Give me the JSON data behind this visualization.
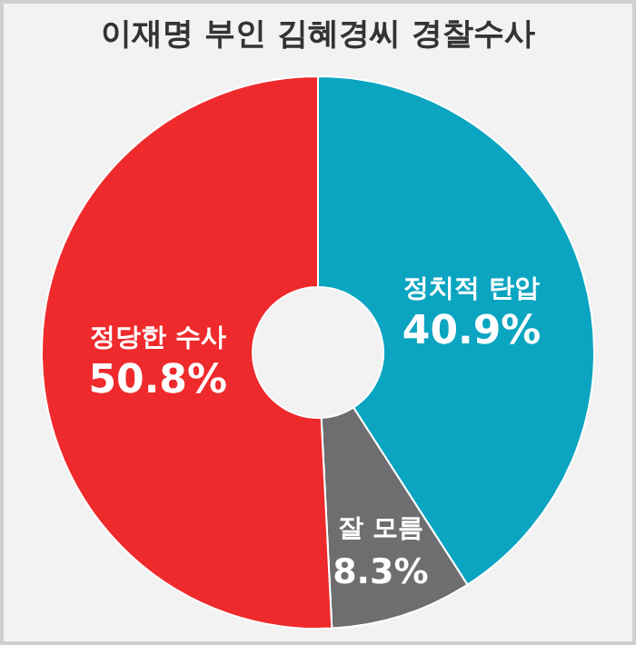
{
  "chart_data": {
    "type": "donut",
    "title": "이재명 부인 김혜경씨 경찰수사",
    "categories": [
      "정치적 탄압",
      "잘 모름",
      "정당한 수사"
    ],
    "values": [
      40.9,
      8.3,
      50.8
    ],
    "colors": [
      "#0ba5c1",
      "#6e6e70",
      "#ee2a2c"
    ],
    "value_labels": [
      "40.9%",
      "8.3%",
      "50.8%"
    ]
  }
}
